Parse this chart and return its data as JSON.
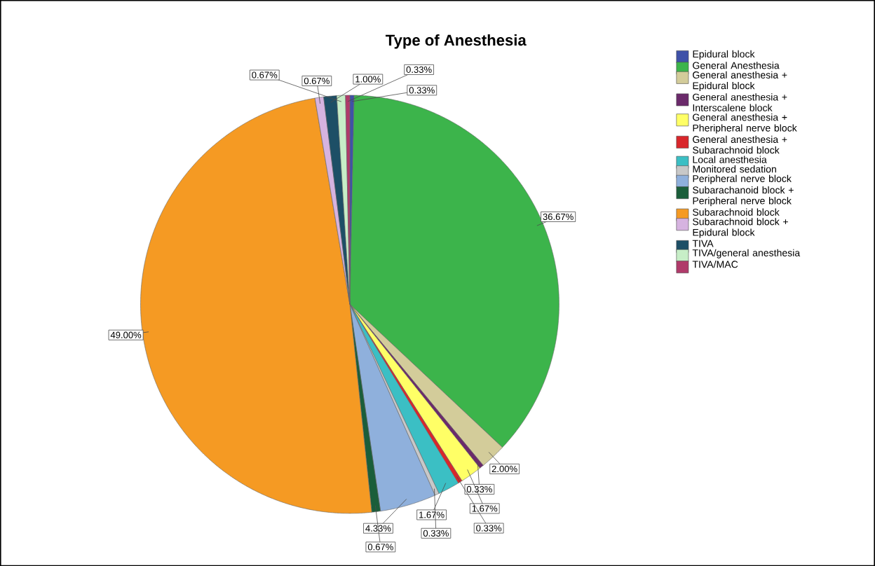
{
  "chart_data": {
    "type": "pie",
    "title": "Type of Anesthesia",
    "categories": [
      "Epidural block",
      "General Anesthesia",
      "General anesthesia + Epidural block",
      "General anesthesia + Interscalene block",
      "General anesthesia + Pheripheral nerve block",
      "General anesthesia + Subarachnoid block",
      "Local anesthesia",
      "Monitored sedation",
      "Peripheral nerve block",
      "Subarachanoid block + Peripheral nerve block",
      "Subarachnoid block",
      "Subarachnoid block + Epidural block",
      "TIVA",
      "TIVA/general anesthesia",
      "TIVA/MAC"
    ],
    "values": [
      0.33,
      36.67,
      2.0,
      0.33,
      1.67,
      0.33,
      1.67,
      0.33,
      4.33,
      0.67,
      49.0,
      0.67,
      1.0,
      0.67,
      0.33
    ],
    "colors": [
      "#3f51a8",
      "#3cb44b",
      "#d3cc9a",
      "#6b2a6b",
      "#ffff66",
      "#d9262b",
      "#3bbfc4",
      "#c8c8c8",
      "#8fb0dc",
      "#1a5e3a",
      "#f59a23",
      "#d6b3e0",
      "#1d4f66",
      "#c7eec7",
      "#b03a6a"
    ],
    "value_labels": [
      "0.33%",
      "36.67%",
      "2.00%",
      "0.33%",
      "1.67%",
      "0.33%",
      "1.67%",
      "0.33%",
      "4.33%",
      "0.67%",
      "49.00%",
      "0.67%",
      "1.00%",
      "0.67%",
      "0.33%"
    ],
    "legend": "right"
  }
}
